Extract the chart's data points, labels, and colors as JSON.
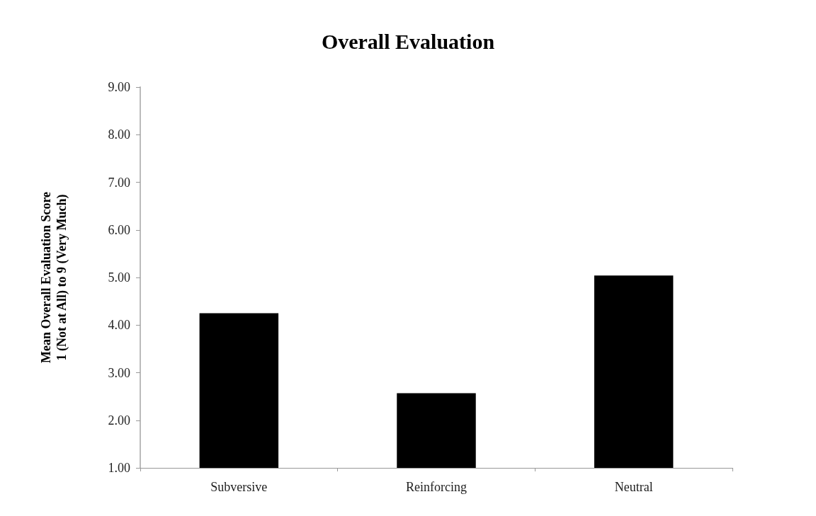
{
  "chart_data": {
    "type": "bar",
    "title": "Overall Evaluation",
    "ylabel": "Mean Overall Evaluation Score\n1 (Not at All) to 9 (Very Much)",
    "categories": [
      "Subversive",
      "Reinforcing",
      "Neutral"
    ],
    "values": [
      4.25,
      2.57,
      5.04
    ],
    "color": "#000000",
    "ylim": [
      1,
      9
    ],
    "yticks": [
      {
        "value": 1,
        "label": "1.00"
      },
      {
        "value": 2,
        "label": "2.00"
      },
      {
        "value": 3,
        "label": "3.00"
      },
      {
        "value": 4,
        "label": "4.00"
      },
      {
        "value": 5,
        "label": "5.00"
      },
      {
        "value": 6,
        "label": "6.00"
      },
      {
        "value": 7,
        "label": "7.00"
      },
      {
        "value": 8,
        "label": "8.00"
      },
      {
        "value": 9,
        "label": "9.00"
      }
    ],
    "grid": false
  }
}
